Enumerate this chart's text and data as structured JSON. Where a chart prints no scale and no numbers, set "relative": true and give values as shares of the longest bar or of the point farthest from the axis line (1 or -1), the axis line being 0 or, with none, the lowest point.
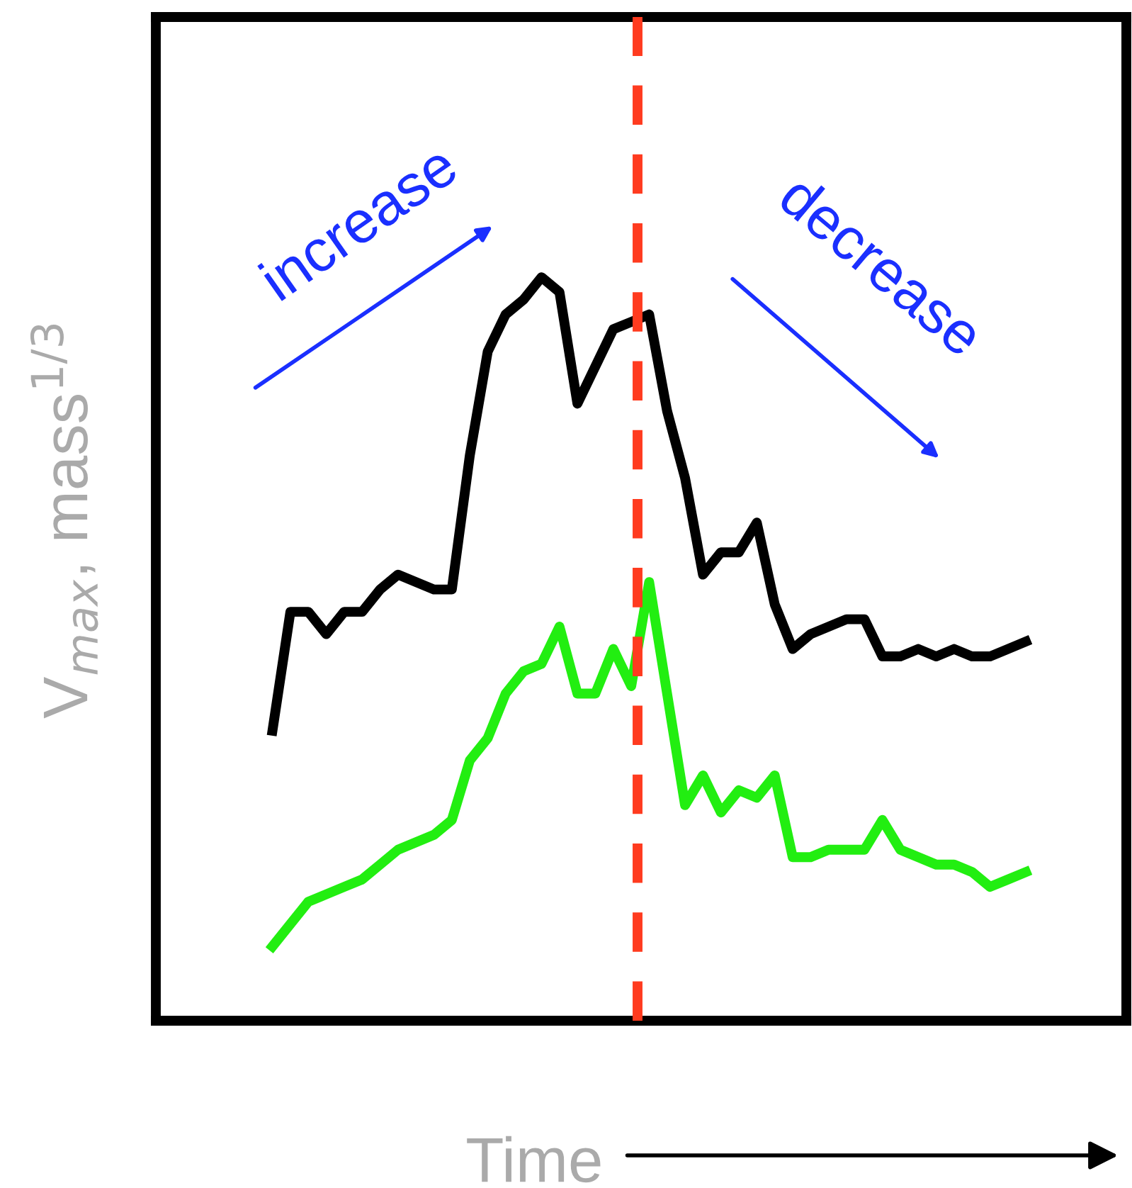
{
  "chart_data": {
    "type": "line",
    "relative": true,
    "xlabel": "Time",
    "ylabel": "V$_{max}$, mass$^{1/3}$",
    "categories": [
      null,
      null,
      null,
      null,
      null,
      null,
      null,
      null,
      null,
      null,
      null,
      null,
      null,
      null,
      null,
      null,
      null,
      null,
      null,
      null,
      null,
      null,
      null,
      null,
      null,
      null,
      null,
      null,
      null,
      null,
      null,
      null,
      null,
      null,
      null,
      null,
      null,
      null,
      null,
      null,
      null,
      null,
      null
    ],
    "series": [
      {
        "color": "#000000",
        "values": [
          0.39,
          0.55,
          0.55,
          0.52,
          0.55,
          0.55,
          0.58,
          0.6,
          0.59,
          0.58,
          0.58,
          0.76,
          0.9,
          0.95,
          0.97,
          1,
          0.98,
          0.83,
          0.88,
          0.93,
          0.94,
          0.95,
          0.82,
          0.73,
          0.6,
          0.63,
          0.63,
          0.67,
          0.56,
          0.5,
          0.52,
          0.53,
          0.54,
          0.54,
          0.49,
          0.49,
          0.5,
          0.49,
          0.5,
          0.49,
          0.49,
          0.5,
          0.51
        ]
      },
      {
        "color": "#22ee11",
        "values": [
          0.1,
          0.13,
          0.16,
          0.17,
          0.18,
          0.19,
          0.21,
          0.23,
          0.24,
          0.25,
          0.27,
          0.35,
          0.38,
          0.44,
          0.47,
          0.48,
          0.53,
          0.44,
          0.44,
          0.5,
          0.45,
          0.59,
          0.44,
          0.29,
          0.33,
          0.28,
          0.31,
          0.3,
          0.33,
          0.22,
          0.22,
          0.23,
          0.23,
          0.23,
          0.27,
          0.23,
          0.22,
          0.21,
          0.21,
          0.2,
          0.18,
          0.19,
          0.2
        ]
      }
    ],
    "annotations": [
      "increase",
      "decrease"
    ],
    "marker": "none",
    "line_style": "solid",
    "grid": false,
    "legend": false
  }
}
